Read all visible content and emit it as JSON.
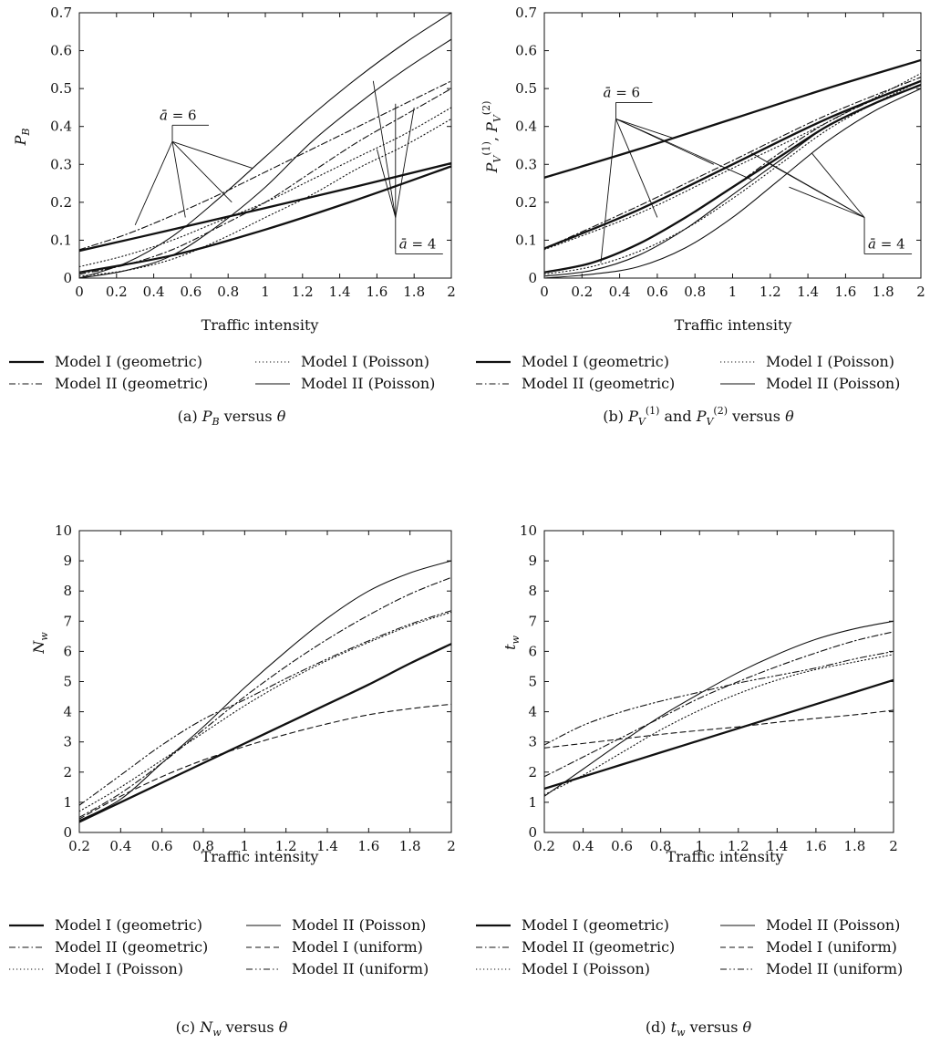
{
  "figure_captions": {
    "a": "(a)  P_B versus θ",
    "b": "(b)  P_V^(1) and P_V^(2) versus θ",
    "c": "(c)  N_w versus θ",
    "d": "(d)  t_w versus θ"
  },
  "chart_data": [
    {
      "id": "a",
      "type": "line",
      "xlabel": "Traffic intensity",
      "ylabel": "P_B",
      "xlim": [
        0,
        2
      ],
      "ylim": [
        0,
        0.7
      ],
      "xticks": [
        "0",
        "0.2",
        "0.4",
        "0.6",
        "0.8",
        "1",
        "1.2",
        "1.4",
        "1.6",
        "1.8",
        "2"
      ],
      "yticks": [
        "0",
        "0.1",
        "0.2",
        "0.3",
        "0.4",
        "0.5",
        "0.6",
        "0.7"
      ],
      "grid": false,
      "legend": [
        {
          "label": "Model I (geometric)",
          "style": "thick"
        },
        {
          "label": "Model I (Poisson)",
          "style": "dotted"
        },
        {
          "label": "Model II (geometric)",
          "style": "dashdot"
        },
        {
          "label": "Model II (Poisson)",
          "style": "thin"
        }
      ],
      "annotations": [
        {
          "text": "ā = 6",
          "apex": [
            0.5,
            0.36
          ],
          "targets": [
            [
              0.3,
              0.14
            ],
            [
              0.57,
              0.16
            ],
            [
              0.82,
              0.2
            ],
            [
              0.93,
              0.29
            ]
          ]
        },
        {
          "text": "ā = 4",
          "apex": [
            1.7,
            0.16
          ],
          "targets": [
            [
              1.58,
              0.52
            ],
            [
              1.7,
              0.46
            ],
            [
              1.8,
              0.45
            ],
            [
              1.6,
              0.34
            ]
          ]
        }
      ],
      "series": [
        {
          "style": "thick",
          "x": [
            0,
            0.5,
            1,
            1.5,
            2
          ],
          "values": [
            0.072,
            0.128,
            0.185,
            0.243,
            0.303
          ]
        },
        {
          "style": "thick",
          "x": [
            0,
            0.5,
            1,
            1.5,
            2
          ],
          "values": [
            0.015,
            0.06,
            0.128,
            0.208,
            0.295
          ]
        },
        {
          "style": "dashdot",
          "x": [
            0,
            0.25,
            0.5,
            0.75,
            1,
            1.25,
            1.5,
            1.75,
            2
          ],
          "values": [
            0.075,
            0.115,
            0.165,
            0.22,
            0.28,
            0.34,
            0.4,
            0.46,
            0.52
          ]
        },
        {
          "style": "dashdot",
          "x": [
            0,
            0.25,
            0.5,
            0.75,
            1,
            1.25,
            1.5,
            1.75,
            2
          ],
          "values": [
            0.01,
            0.035,
            0.075,
            0.135,
            0.2,
            0.28,
            0.36,
            0.43,
            0.5
          ]
        },
        {
          "style": "dotted",
          "x": [
            0,
            0.25,
            0.5,
            0.75,
            1,
            1.25,
            1.5,
            1.75,
            2
          ],
          "values": [
            0.03,
            0.06,
            0.1,
            0.15,
            0.2,
            0.26,
            0.32,
            0.38,
            0.45
          ]
        },
        {
          "style": "dotted",
          "x": [
            0,
            0.25,
            0.5,
            0.75,
            1,
            1.25,
            1.5,
            1.75,
            2
          ],
          "values": [
            0.005,
            0.02,
            0.05,
            0.1,
            0.16,
            0.22,
            0.29,
            0.35,
            0.42
          ]
        },
        {
          "style": "thin",
          "x": [
            0,
            0.25,
            0.5,
            0.75,
            1,
            1.25,
            1.5,
            1.75,
            2
          ],
          "values": [
            0,
            0.04,
            0.11,
            0.21,
            0.32,
            0.43,
            0.53,
            0.62,
            0.7
          ]
        },
        {
          "style": "thin",
          "x": [
            0,
            0.25,
            0.5,
            0.75,
            1,
            1.25,
            1.5,
            1.75,
            2
          ],
          "values": [
            0,
            0.02,
            0.06,
            0.14,
            0.24,
            0.36,
            0.46,
            0.55,
            0.63
          ]
        }
      ]
    },
    {
      "id": "b",
      "type": "line",
      "xlabel": "Traffic intensity",
      "ylabel": "P_V^(1), P_V^(2)",
      "xlim": [
        0,
        2
      ],
      "ylim": [
        0,
        0.7
      ],
      "xticks": [
        "0",
        "0.2",
        "0.4",
        "0.6",
        "0.8",
        "1",
        "1.2",
        "1.4",
        "1.6",
        "1.8",
        "2"
      ],
      "yticks": [
        "0",
        "0.1",
        "0.2",
        "0.3",
        "0.4",
        "0.5",
        "0.6",
        "0.7"
      ],
      "grid": false,
      "legend": [
        {
          "label": "Model I (geometric)",
          "style": "thick"
        },
        {
          "label": "Model I (Poisson)",
          "style": "dotted"
        },
        {
          "label": "Model II (geometric)",
          "style": "dashdot"
        },
        {
          "label": "Model II (Poisson)",
          "style": "thin"
        }
      ],
      "annotations": [
        {
          "text": "ā = 6",
          "apex": [
            0.38,
            0.42
          ],
          "targets": [
            [
              0.3,
              0.04
            ],
            [
              0.6,
              0.16
            ],
            [
              0.68,
              0.37
            ],
            [
              0.9,
              0.3
            ],
            [
              1.1,
              0.26
            ]
          ]
        },
        {
          "text": "ā = 4",
          "apex": [
            1.7,
            0.16
          ],
          "targets": [
            [
              1.1,
              0.33
            ],
            [
              1.2,
              0.3
            ],
            [
              1.3,
              0.24
            ],
            [
              1.42,
              0.33
            ]
          ]
        }
      ],
      "series": [
        {
          "style": "thick",
          "x": [
            0,
            0.5,
            1,
            1.5,
            2
          ],
          "values": [
            0.265,
            0.34,
            0.42,
            0.5,
            0.575
          ]
        },
        {
          "style": "thick",
          "x": [
            0,
            0.5,
            1,
            1.5,
            2
          ],
          "values": [
            0.078,
            0.18,
            0.3,
            0.42,
            0.52
          ]
        },
        {
          "style": "dashdot",
          "x": [
            0,
            0.5,
            1,
            1.5,
            2
          ],
          "values": [
            0.078,
            0.19,
            0.31,
            0.43,
            0.53
          ]
        },
        {
          "style": "dotted",
          "x": [
            0,
            0.5,
            1,
            1.5,
            2
          ],
          "values": [
            0.075,
            0.17,
            0.29,
            0.41,
            0.54
          ]
        },
        {
          "style": "thick",
          "x": [
            0,
            0.25,
            0.5,
            0.75,
            1,
            1.25,
            1.5,
            1.75,
            2
          ],
          "values": [
            0.015,
            0.04,
            0.09,
            0.16,
            0.24,
            0.32,
            0.4,
            0.46,
            0.51
          ]
        },
        {
          "style": "dashdot",
          "x": [
            0,
            0.25,
            0.5,
            0.75,
            1,
            1.25,
            1.5,
            1.75,
            2
          ],
          "values": [
            0.015,
            0.04,
            0.09,
            0.16,
            0.24,
            0.33,
            0.41,
            0.47,
            0.52
          ]
        },
        {
          "style": "dotted",
          "x": [
            0,
            0.25,
            0.5,
            0.75,
            1,
            1.25,
            1.5,
            1.75,
            2
          ],
          "values": [
            0.01,
            0.03,
            0.07,
            0.13,
            0.21,
            0.3,
            0.39,
            0.46,
            0.52
          ]
        },
        {
          "style": "thin",
          "x": [
            0,
            0.25,
            0.5,
            0.75,
            1,
            1.25,
            1.5,
            1.75,
            2
          ],
          "values": [
            0.005,
            0.02,
            0.06,
            0.13,
            0.22,
            0.31,
            0.4,
            0.46,
            0.51
          ]
        },
        {
          "style": "thin",
          "x": [
            0,
            0.25,
            0.5,
            0.75,
            1,
            1.25,
            1.5,
            1.75,
            2
          ],
          "values": [
            0.0,
            0.01,
            0.03,
            0.08,
            0.16,
            0.26,
            0.36,
            0.44,
            0.5
          ]
        }
      ]
    },
    {
      "id": "c",
      "type": "line",
      "xlabel": "Traffic intensity",
      "ylabel": "N_w",
      "xlim": [
        0.2,
        2
      ],
      "ylim": [
        0,
        10
      ],
      "xticks": [
        "0.2",
        "0.4",
        "0.6",
        "0.8",
        "1",
        "1.2",
        "1.4",
        "1.6",
        "1.8",
        "2"
      ],
      "yticks": [
        "0",
        "1",
        "2",
        "3",
        "4",
        "5",
        "6",
        "7",
        "8",
        "9",
        "10"
      ],
      "grid": false,
      "legend": [
        {
          "label": "Model I (geometric)",
          "style": "thick"
        },
        {
          "label": "Model II (Poisson)",
          "style": "thin"
        },
        {
          "label": "Model II (geometric)",
          "style": "dashdot"
        },
        {
          "label": "Model I (uniform)",
          "style": "dashed"
        },
        {
          "label": "Model I (Poisson)",
          "style": "dotted"
        },
        {
          "label": "Model II (uniform)",
          "style": "dashdotdot"
        }
      ],
      "series": [
        {
          "style": "thick",
          "x": [
            0.2,
            0.4,
            0.6,
            0.8,
            1,
            1.2,
            1.4,
            1.6,
            1.8,
            2
          ],
          "values": [
            0.35,
            1.0,
            1.65,
            2.3,
            2.95,
            3.6,
            4.25,
            4.9,
            5.6,
            6.25
          ]
        },
        {
          "style": "thin",
          "x": [
            0.2,
            0.4,
            0.6,
            0.8,
            1,
            1.2,
            1.4,
            1.6,
            1.8,
            2
          ],
          "values": [
            0.4,
            1.1,
            2.3,
            3.5,
            4.8,
            6.0,
            7.1,
            8.0,
            8.6,
            9.0
          ]
        },
        {
          "style": "dashdot",
          "x": [
            0.2,
            0.4,
            0.6,
            0.8,
            1,
            1.2,
            1.4,
            1.6,
            1.8,
            2
          ],
          "values": [
            0.5,
            1.3,
            2.3,
            3.4,
            4.5,
            5.5,
            6.4,
            7.2,
            7.9,
            8.45
          ]
        },
        {
          "style": "dashed",
          "x": [
            0.2,
            0.4,
            0.6,
            0.8,
            1,
            1.2,
            1.4,
            1.6,
            1.8,
            2
          ],
          "values": [
            0.45,
            1.2,
            1.85,
            2.4,
            2.85,
            3.25,
            3.6,
            3.9,
            4.1,
            4.25
          ]
        },
        {
          "style": "dotted",
          "x": [
            0.2,
            0.4,
            0.6,
            0.8,
            1,
            1.2,
            1.4,
            1.6,
            1.8,
            2
          ],
          "values": [
            0.7,
            1.5,
            2.4,
            3.3,
            4.2,
            5.0,
            5.7,
            6.3,
            6.85,
            7.3
          ]
        },
        {
          "style": "dashdotdot",
          "x": [
            0.2,
            0.4,
            0.6,
            0.8,
            1,
            1.2,
            1.4,
            1.6,
            1.8,
            2
          ],
          "values": [
            0.9,
            1.9,
            2.9,
            3.75,
            4.4,
            5.1,
            5.75,
            6.35,
            6.9,
            7.35
          ]
        }
      ]
    },
    {
      "id": "d",
      "type": "line",
      "xlabel": "Traffic intensity",
      "ylabel": "t_w",
      "xlim": [
        0.2,
        2
      ],
      "ylim": [
        0,
        10
      ],
      "xticks": [
        "0.2",
        "0.4",
        "0.6",
        "0.8",
        "1",
        "1.2",
        "1.4",
        "1.6",
        "1.8",
        "2"
      ],
      "yticks": [
        "0",
        "1",
        "2",
        "3",
        "4",
        "5",
        "6",
        "7",
        "8",
        "9",
        "10"
      ],
      "grid": false,
      "legend": [
        {
          "label": "Model I (geometric)",
          "style": "thick"
        },
        {
          "label": "Model II (Poisson)",
          "style": "thin"
        },
        {
          "label": "Model II (geometric)",
          "style": "dashdot"
        },
        {
          "label": "Model I (uniform)",
          "style": "dashed"
        },
        {
          "label": "Model I (Poisson)",
          "style": "dotted"
        },
        {
          "label": "Model II (uniform)",
          "style": "dashdotdot"
        }
      ],
      "series": [
        {
          "style": "thick",
          "x": [
            0.2,
            0.4,
            0.6,
            0.8,
            1,
            1.2,
            1.4,
            1.6,
            1.8,
            2
          ],
          "values": [
            1.45,
            1.85,
            2.25,
            2.65,
            3.05,
            3.45,
            3.85,
            4.25,
            4.65,
            5.05
          ]
        },
        {
          "style": "thin",
          "x": [
            0.2,
            0.4,
            0.6,
            0.8,
            1,
            1.2,
            1.4,
            1.6,
            1.8,
            2
          ],
          "values": [
            1.2,
            2.1,
            3.0,
            3.85,
            4.6,
            5.3,
            5.9,
            6.4,
            6.75,
            7.0
          ]
        },
        {
          "style": "dashdot",
          "x": [
            0.2,
            0.4,
            0.6,
            0.8,
            1,
            1.2,
            1.4,
            1.6,
            1.8,
            2
          ],
          "values": [
            1.85,
            2.5,
            3.15,
            3.8,
            4.45,
            5.0,
            5.5,
            5.95,
            6.35,
            6.65
          ]
        },
        {
          "style": "dashed",
          "x": [
            0.2,
            0.4,
            0.6,
            0.8,
            1,
            1.2,
            1.4,
            1.6,
            1.8,
            2
          ],
          "values": [
            2.8,
            2.95,
            3.1,
            3.25,
            3.38,
            3.5,
            3.65,
            3.78,
            3.9,
            4.05
          ]
        },
        {
          "style": "dotted",
          "x": [
            0.2,
            0.4,
            0.6,
            0.8,
            1,
            1.2,
            1.4,
            1.6,
            1.8,
            2
          ],
          "values": [
            1.25,
            1.9,
            2.65,
            3.4,
            4.05,
            4.6,
            5.05,
            5.4,
            5.65,
            5.9
          ]
        },
        {
          "style": "dashdotdot",
          "x": [
            0.2,
            0.4,
            0.6,
            0.8,
            1,
            1.2,
            1.4,
            1.6,
            1.8,
            2
          ],
          "values": [
            2.9,
            3.55,
            4.0,
            4.35,
            4.65,
            4.95,
            5.2,
            5.45,
            5.75,
            6.0
          ]
        }
      ]
    }
  ]
}
